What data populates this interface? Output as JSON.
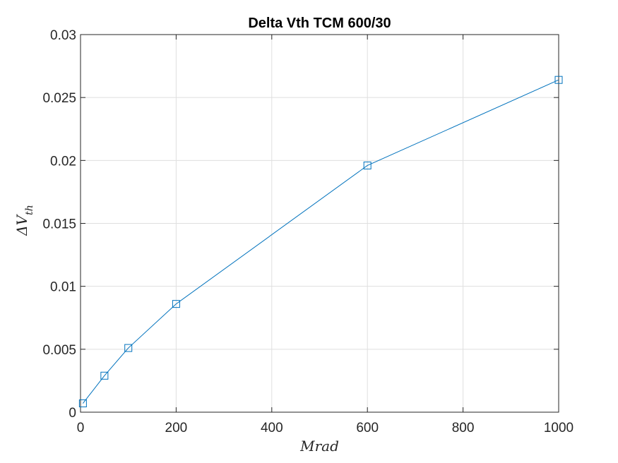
{
  "chart_data": {
    "type": "line",
    "title": "Delta Vth TCM 600/30",
    "xlabel": "Mrad",
    "ylabel_symbol": "ΔV",
    "ylabel_subscript": "th",
    "xlim": [
      0,
      1000
    ],
    "ylim": [
      0,
      0.03
    ],
    "xticks": [
      0,
      200,
      400,
      600,
      800,
      1000
    ],
    "xtick_labels": [
      "0",
      "200",
      "400",
      "600",
      "800",
      "1000"
    ],
    "yticks": [
      0,
      0.005,
      0.01,
      0.015,
      0.02,
      0.025,
      0.03
    ],
    "ytick_labels": [
      "0",
      "0.005",
      "0.01",
      "0.015",
      "0.02",
      "0.025",
      "0.03"
    ],
    "grid": true,
    "marker": "square",
    "color": "#0072bd",
    "series": [
      {
        "x": [
          5,
          50,
          100,
          200,
          600,
          1000
        ],
        "y": [
          0.0007,
          0.0029,
          0.0051,
          0.0086,
          0.0196,
          0.0264
        ]
      }
    ]
  }
}
